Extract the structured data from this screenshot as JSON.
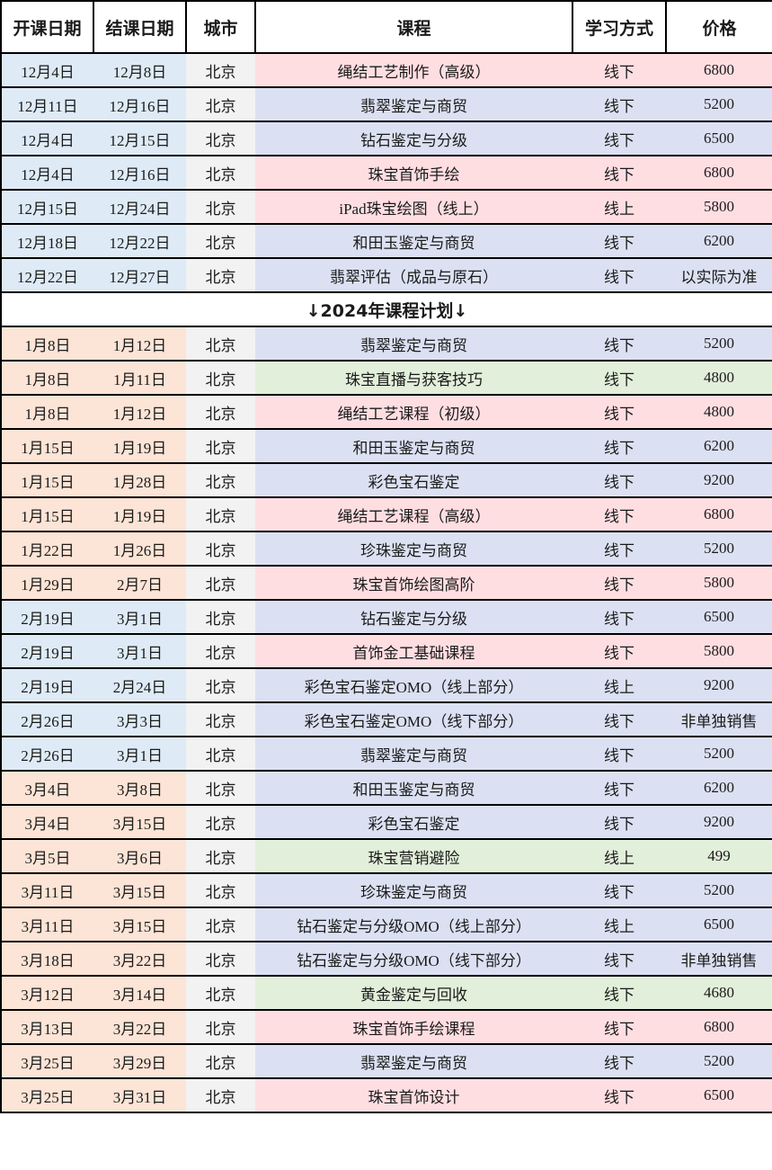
{
  "colors": {
    "date_blue": "#DEEBF7",
    "date_peach": "#FCE4D6",
    "city_gray": "#F2F2F2",
    "course_pink": "#FFDEE2",
    "course_lavender": "#DBE1F2",
    "course_green": "#E2EFDA",
    "header_bg": "#FFFFFF",
    "border": "#000000",
    "text": "#1A1A1A"
  },
  "table": {
    "headers": [
      "开课日期",
      "结课日期",
      "城市",
      "课程",
      "学习方式",
      "价格"
    ],
    "rows": [
      {
        "type": "course",
        "start": "12月4日",
        "end": "12月8日",
        "city": "北京",
        "course": "绳结工艺制作（高级）",
        "method": "线下",
        "price": "6800",
        "date_bg": "blue",
        "course_bg": "pink"
      },
      {
        "type": "course",
        "start": "12月11日",
        "end": "12月16日",
        "city": "北京",
        "course": "翡翠鉴定与商贸",
        "method": "线下",
        "price": "5200",
        "date_bg": "blue",
        "course_bg": "lavender"
      },
      {
        "type": "course",
        "start": "12月4日",
        "end": "12月15日",
        "city": "北京",
        "course": "钻石鉴定与分级",
        "method": "线下",
        "price": "6500",
        "date_bg": "blue",
        "course_bg": "lavender"
      },
      {
        "type": "course",
        "start": "12月4日",
        "end": "12月16日",
        "city": "北京",
        "course": "珠宝首饰手绘",
        "method": "线下",
        "price": "6800",
        "date_bg": "blue",
        "course_bg": "pink"
      },
      {
        "type": "course",
        "start": "12月15日",
        "end": "12月24日",
        "city": "北京",
        "course": "iPad珠宝绘图（线上）",
        "method": "线上",
        "price": "5800",
        "date_bg": "blue",
        "course_bg": "pink"
      },
      {
        "type": "course",
        "start": "12月18日",
        "end": "12月22日",
        "city": "北京",
        "course": "和田玉鉴定与商贸",
        "method": "线下",
        "price": "6200",
        "date_bg": "blue",
        "course_bg": "lavender"
      },
      {
        "type": "course",
        "start": "12月22日",
        "end": "12月27日",
        "city": "北京",
        "course": "翡翠评估（成品与原石）",
        "method": "线下",
        "price": "以实际为准",
        "date_bg": "blue",
        "course_bg": "lavender"
      },
      {
        "type": "separator",
        "label": "↓2024年课程计划↓"
      },
      {
        "type": "course",
        "start": "1月8日",
        "end": "1月12日",
        "city": "北京",
        "course": "翡翠鉴定与商贸",
        "method": "线下",
        "price": "5200",
        "date_bg": "peach",
        "course_bg": "lavender"
      },
      {
        "type": "course",
        "start": "1月8日",
        "end": "1月11日",
        "city": "北京",
        "course": "珠宝直播与获客技巧",
        "method": "线下",
        "price": "4800",
        "date_bg": "peach",
        "course_bg": "green"
      },
      {
        "type": "course",
        "start": "1月8日",
        "end": "1月12日",
        "city": "北京",
        "course": "绳结工艺课程（初级）",
        "method": "线下",
        "price": "4800",
        "date_bg": "peach",
        "course_bg": "pink"
      },
      {
        "type": "course",
        "start": "1月15日",
        "end": "1月19日",
        "city": "北京",
        "course": "和田玉鉴定与商贸",
        "method": "线下",
        "price": "6200",
        "date_bg": "peach",
        "course_bg": "lavender"
      },
      {
        "type": "course",
        "start": "1月15日",
        "end": "1月28日",
        "city": "北京",
        "course": "彩色宝石鉴定",
        "method": "线下",
        "price": "9200",
        "date_bg": "peach",
        "course_bg": "lavender"
      },
      {
        "type": "course",
        "start": "1月15日",
        "end": "1月19日",
        "city": "北京",
        "course": "绳结工艺课程（高级）",
        "method": "线下",
        "price": "6800",
        "date_bg": "peach",
        "course_bg": "pink"
      },
      {
        "type": "course",
        "start": "1月22日",
        "end": "1月26日",
        "city": "北京",
        "course": "珍珠鉴定与商贸",
        "method": "线下",
        "price": "5200",
        "date_bg": "peach",
        "course_bg": "lavender"
      },
      {
        "type": "course",
        "start": "1月29日",
        "end": "2月7日",
        "city": "北京",
        "course": "珠宝首饰绘图高阶",
        "method": "线下",
        "price": "5800",
        "date_bg": "peach",
        "course_bg": "pink"
      },
      {
        "type": "course",
        "start": "2月19日",
        "end": "3月1日",
        "city": "北京",
        "course": "钻石鉴定与分级",
        "method": "线下",
        "price": "6500",
        "date_bg": "blue",
        "course_bg": "lavender"
      },
      {
        "type": "course",
        "start": "2月19日",
        "end": "3月1日",
        "city": "北京",
        "course": "首饰金工基础课程",
        "method": "线下",
        "price": "5800",
        "date_bg": "blue",
        "course_bg": "pink"
      },
      {
        "type": "course",
        "start": "2月19日",
        "end": "2月24日",
        "city": "北京",
        "course": "彩色宝石鉴定OMO（线上部分）",
        "method": "线上",
        "price": "9200",
        "date_bg": "blue",
        "course_bg": "lavender"
      },
      {
        "type": "course",
        "start": "2月26日",
        "end": "3月3日",
        "city": "北京",
        "course": "彩色宝石鉴定OMO（线下部分）",
        "method": "线下",
        "price": "非单独销售",
        "date_bg": "blue",
        "course_bg": "lavender"
      },
      {
        "type": "course",
        "start": "2月26日",
        "end": "3月1日",
        "city": "北京",
        "course": "翡翠鉴定与商贸",
        "method": "线下",
        "price": "5200",
        "date_bg": "blue",
        "course_bg": "lavender"
      },
      {
        "type": "course",
        "start": "3月4日",
        "end": "3月8日",
        "city": "北京",
        "course": "和田玉鉴定与商贸",
        "method": "线下",
        "price": "6200",
        "date_bg": "peach",
        "course_bg": "lavender"
      },
      {
        "type": "course",
        "start": "3月4日",
        "end": "3月15日",
        "city": "北京",
        "course": "彩色宝石鉴定",
        "method": "线下",
        "price": "9200",
        "date_bg": "peach",
        "course_bg": "lavender"
      },
      {
        "type": "course",
        "start": "3月5日",
        "end": "3月6日",
        "city": "北京",
        "course": "珠宝营销避险",
        "method": "线上",
        "price": "499",
        "date_bg": "peach",
        "course_bg": "green"
      },
      {
        "type": "course",
        "start": "3月11日",
        "end": "3月15日",
        "city": "北京",
        "course": "珍珠鉴定与商贸",
        "method": "线下",
        "price": "5200",
        "date_bg": "peach",
        "course_bg": "lavender"
      },
      {
        "type": "course",
        "start": "3月11日",
        "end": "3月15日",
        "city": "北京",
        "course": "钻石鉴定与分级OMO（线上部分）",
        "method": "线上",
        "price": "6500",
        "date_bg": "peach",
        "course_bg": "lavender"
      },
      {
        "type": "course",
        "start": "3月18日",
        "end": "3月22日",
        "city": "北京",
        "course": "钻石鉴定与分级OMO（线下部分）",
        "method": "线下",
        "price": "非单独销售",
        "date_bg": "peach",
        "course_bg": "lavender"
      },
      {
        "type": "course",
        "start": "3月12日",
        "end": "3月14日",
        "city": "北京",
        "course": "黄金鉴定与回收",
        "method": "线下",
        "price": "4680",
        "date_bg": "peach",
        "course_bg": "green"
      },
      {
        "type": "course",
        "start": "3月13日",
        "end": "3月22日",
        "city": "北京",
        "course": "珠宝首饰手绘课程",
        "method": "线下",
        "price": "6800",
        "date_bg": "peach",
        "course_bg": "pink"
      },
      {
        "type": "course",
        "start": "3月25日",
        "end": "3月29日",
        "city": "北京",
        "course": "翡翠鉴定与商贸",
        "method": "线下",
        "price": "5200",
        "date_bg": "peach",
        "course_bg": "lavender"
      },
      {
        "type": "course",
        "start": "3月25日",
        "end": "3月31日",
        "city": "北京",
        "course": "珠宝首饰设计",
        "method": "线下",
        "price": "6500",
        "date_bg": "peach",
        "course_bg": "pink"
      }
    ]
  }
}
